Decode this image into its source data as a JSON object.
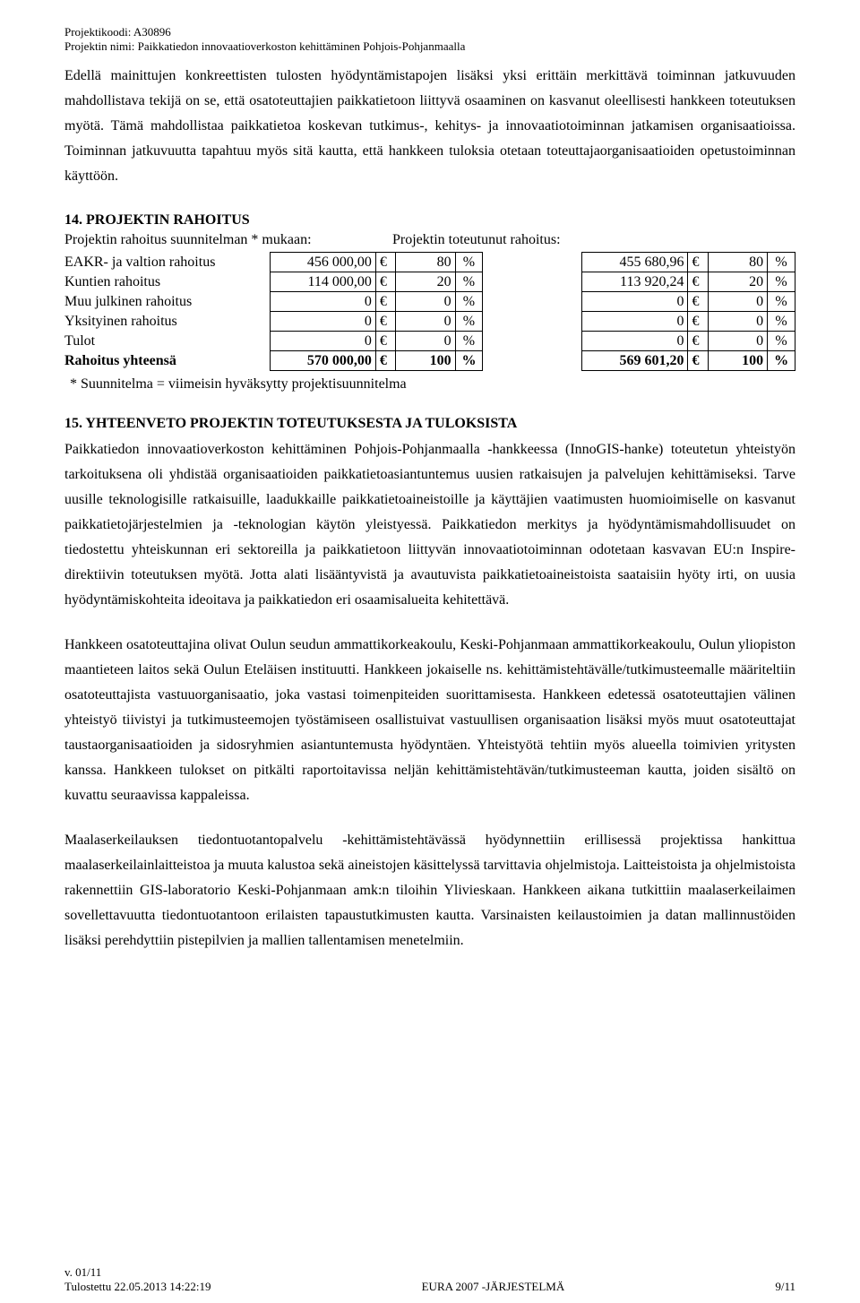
{
  "meta": {
    "code_label": "Projektikoodi: A30896",
    "name_label": "Projektin nimi: Paikkatiedon innovaatioverkoston kehittäminen Pohjois-Pohjanmaalla"
  },
  "intro_paragraph": "Edellä mainittujen konkreettisten tulosten hyödyntämistapojen lisäksi yksi erittäin merkittävä toiminnan jatkuvuuden mahdollistava tekijä on se, että osatoteuttajien paikkatietoon liittyvä osaaminen on kasvanut oleellisesti hankkeen toteutuksen myötä. Tämä mahdollistaa paikkatietoa koskevan tutkimus-, kehitys- ja innovaatiotoiminnan jatkamisen organisaatioissa. Toiminnan jatkuvuutta tapahtuu myös sitä kautta, että hankkeen tuloksia otetaan toteuttajaorganisaatioiden opetustoiminnan käyttöön.",
  "section14": {
    "title": "14. PROJEKTIN RAHOITUS",
    "plan_header": "Projektin rahoitus suunnitelman * mukaan:",
    "actual_header": "Projektin toteutunut rahoitus:",
    "rows": [
      {
        "label": "EAKR- ja valtion rahoitus",
        "plan_val": "456 000,00",
        "plan_pct": "80",
        "actual_val": "455 680,96",
        "actual_pct": "80"
      },
      {
        "label": "Kuntien rahoitus",
        "plan_val": "114 000,00",
        "plan_pct": "20",
        "actual_val": "113 920,24",
        "actual_pct": "20"
      },
      {
        "label": "Muu julkinen rahoitus",
        "plan_val": "0",
        "plan_pct": "0",
        "actual_val": "0",
        "actual_pct": "0"
      },
      {
        "label": "Yksityinen rahoitus",
        "plan_val": "0",
        "plan_pct": "0",
        "actual_val": "0",
        "actual_pct": "0"
      },
      {
        "label": "Tulot",
        "plan_val": "0",
        "plan_pct": "0",
        "actual_val": "0",
        "actual_pct": "0"
      }
    ],
    "total": {
      "label": "Rahoitus yhteensä",
      "plan_val": "570 000,00",
      "plan_pct": "100",
      "actual_val": "569 601,20",
      "actual_pct": "100"
    },
    "currency": "€",
    "pct_sign": "%",
    "footnote": "* Suunnitelma = viimeisin hyväksytty projektisuunnitelma"
  },
  "section15": {
    "title": "15. YHTEENVETO PROJEKTIN TOTEUTUKSESTA JA TULOKSISTA",
    "p1": "Paikkatiedon innovaatioverkoston kehittäminen Pohjois-Pohjanmaalla -hankkeessa (InnoGIS-hanke) toteutetun yhteistyön tarkoituksena oli yhdistää organisaatioiden paikkatietoasiantuntemus uusien ratkaisujen ja palvelujen kehittämiseksi. Tarve uusille teknologisille ratkaisuille, laadukkaille paikkatietoaineistoille ja käyttäjien vaatimusten huomioimiselle on kasvanut paikkatietojärjestelmien ja -teknologian käytön yleistyessä. Paikkatiedon merkitys ja hyödyntämismahdollisuudet on tiedostettu yhteiskunnan eri sektoreilla ja paikkatietoon liittyvän innovaatiotoiminnan odotetaan kasvavan EU:n Inspire-direktiivin toteutuksen myötä. Jotta alati lisääntyvistä ja avautuvista paikkatietoaineistoista saataisiin hyöty irti, on uusia hyödyntämiskohteita ideoitava ja paikkatiedon eri osaamisalueita kehitettävä.",
    "p2": "Hankkeen osatoteuttajina olivat Oulun seudun ammattikorkeakoulu, Keski-Pohjanmaan ammattikorkeakoulu, Oulun yliopiston maantieteen laitos sekä Oulun Eteläisen instituutti. Hankkeen jokaiselle ns. kehittämistehtävälle/tutkimusteemalle määriteltiin osatoteuttajista vastuuorganisaatio, joka vastasi toimenpiteiden suorittamisesta. Hankkeen edetessä osatoteuttajien välinen yhteistyö tiivistyi ja tutkimusteemojen työstämiseen osallistuivat vastuullisen organisaation lisäksi myös muut osatoteuttajat taustaorganisaatioiden ja sidosryhmien asiantuntemusta hyödyntäen. Yhteistyötä tehtiin myös alueella toimivien yritysten kanssa. Hankkeen tulokset on pitkälti raportoitavissa neljän kehittämistehtävän/tutkimusteeman kautta, joiden sisältö on kuvattu seuraavissa kappaleissa.",
    "p3": "Maalaserkeilauksen tiedontuotantopalvelu -kehittämistehtävässä hyödynnettiin erillisessä projektissa hankittua maalaserkeilainlaitteistoa ja muuta kalustoa sekä aineistojen käsittelyssä tarvittavia ohjelmistoja. Laitteistoista ja ohjelmistoista rakennettiin GIS-laboratorio Keski-Pohjanmaan amk:n tiloihin Ylivieskaan. Hankkeen aikana tutkittiin maalaserkeilaimen sovellettavuutta tiedontuotantoon erilaisten tapaustutkimusten kautta. Varsinaisten keilaustoimien ja datan mallinnustöiden lisäksi perehdyttiin pistepilvien ja mallien tallentamisen menetelmiin."
  },
  "footer": {
    "version": "v. 01/11",
    "printed": "Tulostettu 22.05.2013 14:22:19",
    "system": "EURA 2007 -JÄRJESTELMÄ",
    "page": "9/11"
  },
  "style": {
    "text_color": "#000000",
    "background": "#ffffff",
    "table_border": "#000000",
    "body_font": "Times New Roman"
  }
}
